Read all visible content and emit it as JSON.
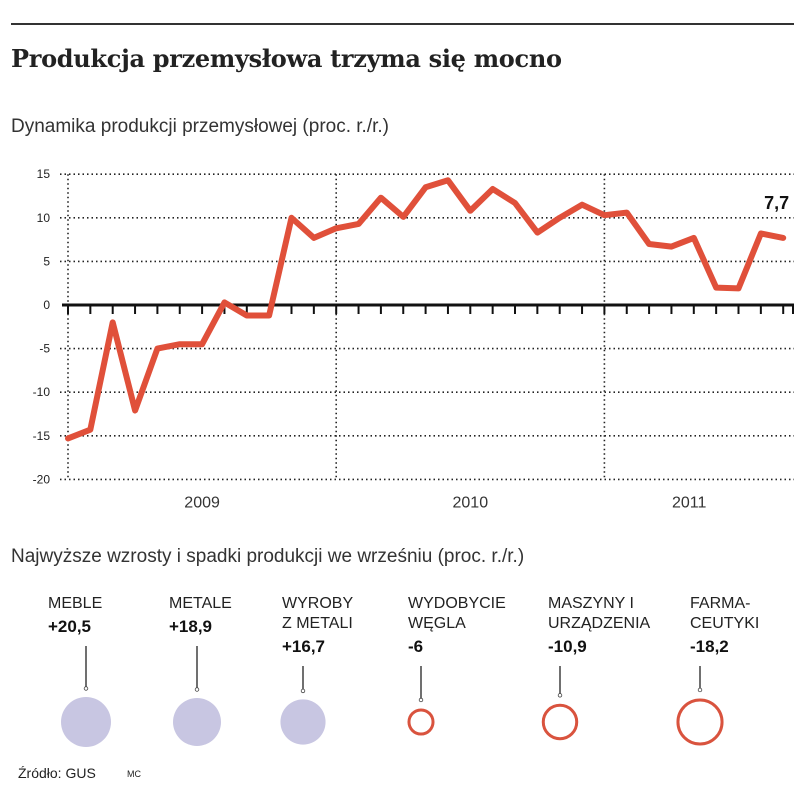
{
  "header": {
    "title": "Produkcja przemysłowa trzyma się mocno",
    "subtitle": "Dynamika produkcji przemysłowej (proc. r./r.)"
  },
  "chart_data": {
    "type": "line",
    "title": "Dynamika produkcji przemysłowej (proc. r./r.)",
    "xlabel": "",
    "ylabel": "proc. r./r.",
    "ylim": [
      -20,
      15
    ],
    "yticks": [
      15,
      10,
      5,
      0,
      -5,
      -10,
      -15,
      -20
    ],
    "ytick_labels": [
      "15",
      "10",
      "5",
      "0",
      "-5",
      "-10",
      "-15",
      "-20"
    ],
    "x_year_labels": [
      "2009",
      "2010",
      "2011"
    ],
    "x_start": "2009-01",
    "x_frequency": "monthly",
    "grid": true,
    "series": [
      {
        "name": "Dynamika produkcji przemysłowej",
        "color": "#e0503a",
        "values": [
          -15.3,
          -14.3,
          -2.0,
          -12.1,
          -5.0,
          -4.5,
          -4.5,
          0.3,
          -1.2,
          -1.2,
          10.0,
          7.7,
          8.8,
          9.3,
          12.3,
          10.1,
          13.5,
          14.3,
          10.8,
          13.3,
          11.7,
          8.3,
          10.0,
          11.5,
          10.3,
          10.6,
          7.0,
          6.7,
          7.7,
          2.0,
          1.9,
          8.2,
          7.7
        ]
      }
    ],
    "annotations": [
      {
        "text": "7,7",
        "point_index": 32
      }
    ]
  },
  "section2": {
    "title": "Najwyższe wzrosty i spadki produkcji we wrześniu (proc. r./r.)",
    "positive_color": "#c8c6e2",
    "negative_color": "#d9533e",
    "items": [
      {
        "label": "MEBLE",
        "value_text": "+20,5",
        "value": 20.5
      },
      {
        "label": "METALE",
        "value_text": "+18,9",
        "value": 18.9
      },
      {
        "label": "WYROBY\nZ METALI",
        "value_text": "+16,7",
        "value": 16.7
      },
      {
        "label": "WYDOBYCIE\nWĘGLA",
        "value_text": "-6",
        "value": -6
      },
      {
        "label": "MASZYNY I\nURZĄDZENIA",
        "value_text": "-10,9",
        "value": -10.9
      },
      {
        "label": "FARMA-\nCEUTYKI",
        "value_text": "-18,2",
        "value": -18.2
      }
    ]
  },
  "footer": {
    "source": "Źródło: GUS",
    "credit": "MC"
  }
}
